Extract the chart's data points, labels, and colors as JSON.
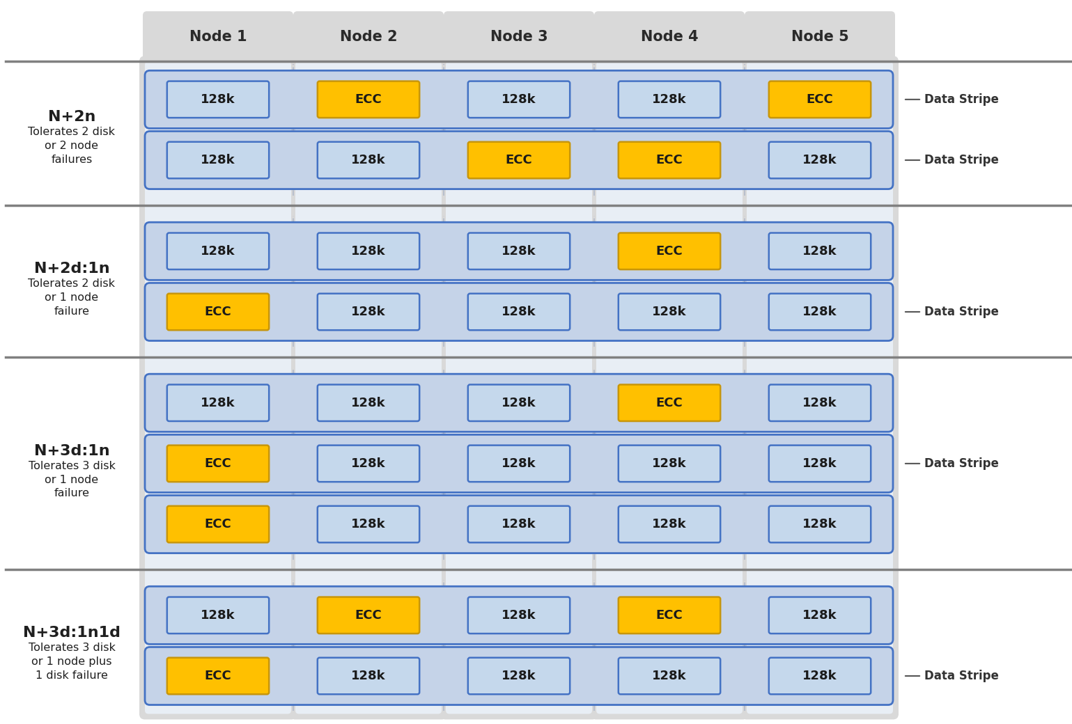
{
  "background_color": "#ffffff",
  "node_headers": [
    "Node 1",
    "Node 2",
    "Node 3",
    "Node 4",
    "Node 5"
  ],
  "node_col_color": "#d9d9d9",
  "node_col_inner_color": "#e8eef5",
  "stripe_bg_color": "#c5d3e8",
  "stripe_border_color": "#4472c4",
  "cell_data_color": "#c5d8ec",
  "cell_data_border": "#4472c4",
  "cell_ecc_color": "#ffc000",
  "cell_ecc_border": "#c8960a",
  "section_line_color": "#808080",
  "label_color": "#1f1f1f",
  "data_stripe_label_color": "#333333",
  "sections": [
    {
      "label": "N+2n",
      "sublabel": "Tolerates 2 disk\nor 2 node\nfailures",
      "stripes": [
        [
          "128k",
          "ECC",
          "128k",
          "128k",
          "ECC"
        ],
        [
          "128k",
          "128k",
          "ECC",
          "ECC",
          "128k"
        ]
      ],
      "data_stripe_rows": [
        0,
        1
      ]
    },
    {
      "label": "N+2d:1n",
      "sublabel": "Tolerates 2 disk\nor 1 node\nfailure",
      "stripes": [
        [
          "128k",
          "128k",
          "128k",
          "ECC",
          "128k"
        ],
        [
          "ECC",
          "128k",
          "128k",
          "128k",
          "128k"
        ]
      ],
      "data_stripe_rows": [
        1
      ]
    },
    {
      "label": "N+3d:1n",
      "sublabel": "Tolerates 3 disk\nor 1 node\nfailure",
      "stripes": [
        [
          "128k",
          "128k",
          "128k",
          "ECC",
          "128k"
        ],
        [
          "ECC",
          "128k",
          "128k",
          "128k",
          "128k"
        ],
        [
          "ECC",
          "128k",
          "128k",
          "128k",
          "128k"
        ]
      ],
      "data_stripe_rows": [
        1
      ]
    },
    {
      "label": "N+3d:1n1d",
      "sublabel": "Tolerates 3 disk\nor 1 node plus\n1 disk failure",
      "stripes": [
        [
          "128k",
          "ECC",
          "128k",
          "ECC",
          "128k"
        ],
        [
          "ECC",
          "128k",
          "128k",
          "128k",
          "128k"
        ]
      ],
      "data_stripe_rows": [
        1
      ]
    }
  ]
}
